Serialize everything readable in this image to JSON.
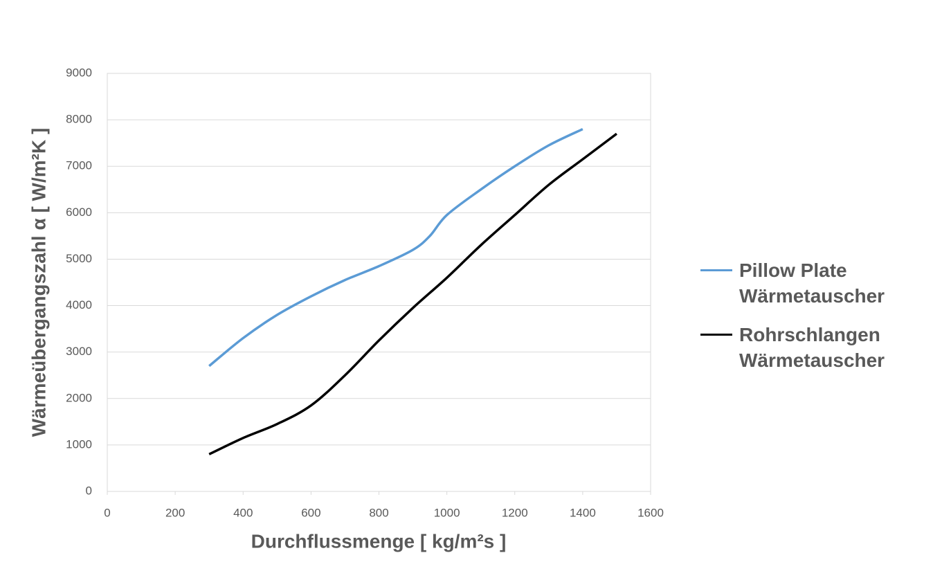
{
  "chart_data": {
    "type": "line",
    "ylabel": "Wärmeübergangszahl α [ W/m²K ]",
    "xlabel": "Durchflussmenge [ kg/m²s ]",
    "xlim": [
      0,
      1600
    ],
    "xticks": [
      0,
      200,
      400,
      600,
      800,
      1000,
      1200,
      1400,
      1600
    ],
    "ylim": [
      0,
      9000
    ],
    "yticks": [
      0,
      1000,
      2000,
      3000,
      4000,
      5000,
      6000,
      7000,
      8000,
      9000
    ],
    "grid": true,
    "series": [
      {
        "name": "Pillow Plate Wärmetauscher",
        "color": "#5b9bd5",
        "x": [
          300,
          400,
          500,
          600,
          700,
          800,
          900,
          950,
          1000,
          1100,
          1200,
          1300,
          1400
        ],
        "values": [
          2700,
          3300,
          3800,
          4200,
          4550,
          4850,
          5200,
          5500,
          5950,
          6500,
          7000,
          7450,
          7800
        ]
      },
      {
        "name": "Rohrschlangen Wärmetauscher",
        "color": "#000000",
        "x": [
          300,
          400,
          500,
          600,
          700,
          800,
          900,
          1000,
          1100,
          1200,
          1300,
          1400,
          1500
        ],
        "values": [
          800,
          1150,
          1450,
          1850,
          2500,
          3250,
          3950,
          4600,
          5300,
          5950,
          6600,
          7150,
          7700
        ]
      }
    ]
  }
}
